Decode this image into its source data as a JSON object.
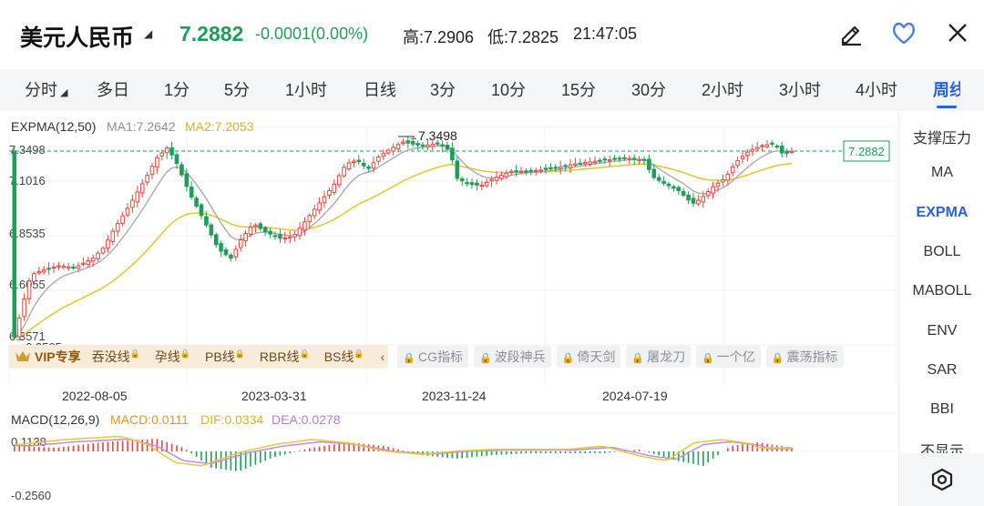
{
  "header": {
    "name": "美元人民币",
    "price": "7.2882",
    "change": "-0.0001(0.00%)",
    "high": "高:7.2906",
    "low": "低:7.2825",
    "time": "21:47:05",
    "icons": [
      "edit-icon",
      "heart-icon",
      "close-icon"
    ]
  },
  "tabs": [
    "分时",
    "多日",
    "1分",
    "5分",
    "1小时",
    "日线",
    "3分",
    "10分",
    "15分",
    "30分",
    "2小时",
    "3小时",
    "4小时",
    "周线"
  ],
  "active_tab": "周线",
  "sidebar": {
    "items": [
      "支撑压力",
      "MA",
      "EXPMA",
      "BOLL",
      "MABOLL",
      "ENV",
      "SAR",
      "BBI",
      "不显示"
    ],
    "active": "EXPMA"
  },
  "main_chart": {
    "legend": {
      "name": "EXPMA(12,50)",
      "ma1": "MA1:7.2642",
      "ma2": "MA2:7.2053"
    },
    "y_labels": [
      "7.3498",
      "7.1016",
      "6.8535",
      "6.6055",
      "6.3571",
      "6.2505"
    ],
    "max_label": "7.3498",
    "current_price_label": "7.2882",
    "x_labels": [
      "2022-08-05",
      "2023-03-31",
      "2023-11-24",
      "2024-07-19"
    ],
    "colors": {
      "up": "#e8453c",
      "down": "#1e9e57",
      "ma1": "#9ea3ab",
      "ma2": "#e3c93a"
    }
  },
  "vip_bar": {
    "badge": "VIP专享",
    "items": [
      "吞没线",
      "孕线",
      "PB线",
      "RBR线",
      "BS线"
    ],
    "arrow": "‹",
    "locked": [
      "CG指标",
      "波段神兵",
      "倚天剑",
      "屠龙刀",
      "一个亿",
      "震荡指标"
    ]
  },
  "macd": {
    "name": "MACD(12,26,9)",
    "macd": "MACD:0.0111",
    "dif": "DIF:0.0334",
    "dea": "DEA:0.0278",
    "top_label": "0.1138",
    "bottom_label": "-0.2560",
    "colors": {
      "macd": "#e3962a",
      "dif": "#e3c93a",
      "dea": "#b77ad6"
    }
  }
}
